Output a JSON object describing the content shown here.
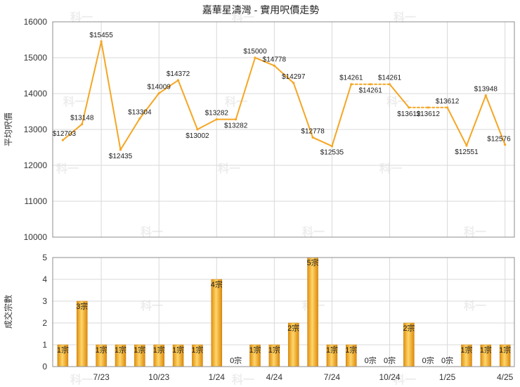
{
  "chart_data": [
    {
      "type": "line",
      "title": "嘉華星濤灣 - 實用呎價走勢",
      "ylabel": "平均呎價",
      "ylim": [
        10000,
        16000
      ],
      "yticks": [
        "10000",
        "11000",
        "12000",
        "13000",
        "14000",
        "15000",
        "16000"
      ],
      "grid": true,
      "color": "#f5a623",
      "values": [
        12703,
        13148,
        15455,
        12435,
        13304,
        14009,
        14372,
        13002,
        13282,
        13282,
        15000,
        14778,
        14297,
        12778,
        12535,
        14261,
        14261,
        14261,
        13612,
        13612,
        13612,
        12551,
        13948,
        12576
      ],
      "labels": [
        "$12703",
        "$13148",
        "$15455",
        "$12435",
        "$13304",
        "$14009",
        "$14372",
        "$13002",
        "$13282",
        "$13282",
        "$15000",
        "$14778",
        "$14297",
        "$12778",
        "$12535",
        "$14261",
        "$14261",
        "$14261",
        "$13612",
        "$13612",
        "$13612",
        "$12551",
        "$13948",
        "$12576"
      ],
      "dashed_segments": [
        [
          15,
          17
        ],
        [
          18,
          20
        ]
      ]
    },
    {
      "type": "bar",
      "ylabel": "成交宗數",
      "ylim": [
        0,
        5
      ],
      "yticks": [
        "0",
        "1",
        "2",
        "3",
        "4",
        "5"
      ],
      "grid": true,
      "values": [
        1,
        3,
        1,
        1,
        1,
        1,
        1,
        1,
        4,
        0,
        1,
        1,
        2,
        5,
        1,
        1,
        0,
        0,
        2,
        0,
        0,
        1,
        1,
        1
      ],
      "labels": [
        "1宗",
        "3宗",
        "1宗",
        "1宗",
        "1宗",
        "1宗",
        "1宗",
        "1宗",
        "4宗",
        "0宗",
        "1宗",
        "1宗",
        "2宗",
        "5宗",
        "1宗",
        "1宗",
        "0宗",
        "0宗",
        "2宗",
        "0宗",
        "0宗",
        "1宗",
        "1宗",
        "1宗"
      ],
      "x_tick_labels": [
        {
          "index": 2,
          "label": "7/23"
        },
        {
          "index": 5,
          "label": "10/23"
        },
        {
          "index": 8,
          "label": "1/24"
        },
        {
          "index": 11,
          "label": "4/24"
        },
        {
          "index": 14,
          "label": "7/24"
        },
        {
          "index": 17,
          "label": "10/24"
        },
        {
          "index": 20,
          "label": "1/25"
        },
        {
          "index": 23,
          "label": "4/25"
        }
      ]
    }
  ],
  "watermark": "科一"
}
